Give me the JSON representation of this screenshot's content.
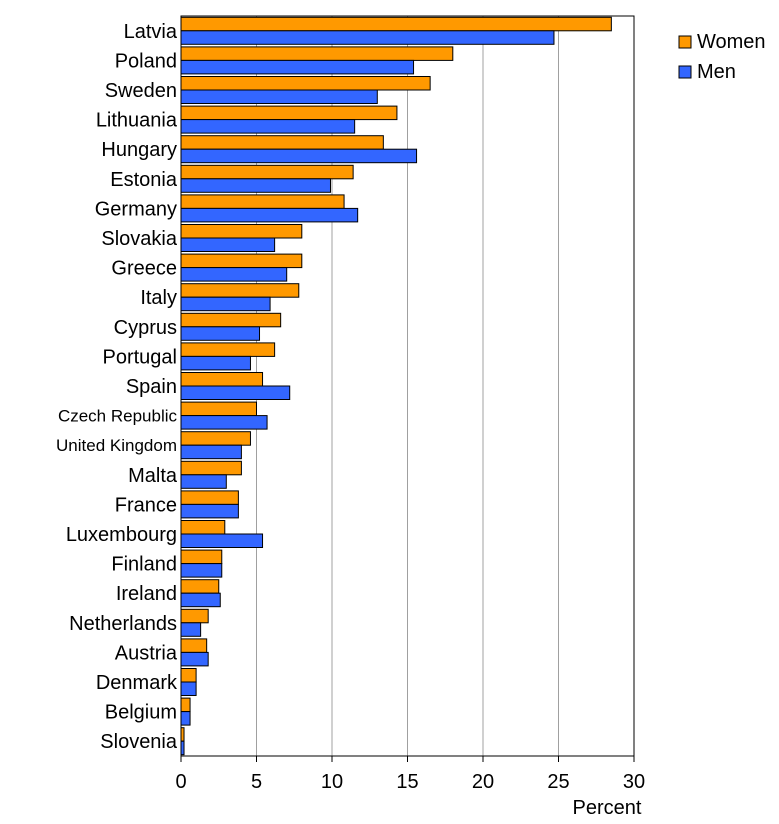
{
  "chart_data": {
    "type": "bar",
    "orientation": "horizontal",
    "title": "",
    "xlabel": "Percent",
    "ylabel": "",
    "xlim": [
      0,
      30
    ],
    "xticks": [
      0,
      5,
      10,
      15,
      20,
      25,
      30
    ],
    "grid": "vertical",
    "legend_position": "top-right",
    "categories": [
      "Latvia",
      "Poland",
      "Sweden",
      "Lithuania",
      "Hungary",
      "Estonia",
      "Germany",
      "Slovakia",
      "Greece",
      "Italy",
      "Cyprus",
      "Portugal",
      "Spain",
      "Czech Republic",
      "United Kingdom",
      "Malta",
      "France",
      "Luxembourg",
      "Finland",
      "Ireland",
      "Netherlands",
      "Austria",
      "Denmark",
      "Belgium",
      "Slovenia"
    ],
    "series": [
      {
        "name": "Women",
        "color": "#ff9900",
        "values": [
          28.5,
          18.0,
          16.5,
          14.3,
          13.4,
          11.4,
          10.8,
          8.0,
          8.0,
          7.8,
          6.6,
          6.2,
          5.4,
          5.0,
          4.6,
          4.0,
          3.8,
          2.9,
          2.7,
          2.5,
          1.8,
          1.7,
          1.0,
          0.6,
          0.2
        ]
      },
      {
        "name": "Men",
        "color": "#3366ff",
        "values": [
          24.7,
          15.4,
          13.0,
          11.5,
          15.6,
          9.9,
          11.7,
          6.2,
          7.0,
          5.9,
          5.2,
          4.6,
          7.2,
          5.7,
          4.0,
          3.0,
          3.8,
          5.4,
          2.7,
          2.6,
          1.3,
          1.8,
          1.0,
          0.6,
          0.2
        ]
      }
    ]
  }
}
